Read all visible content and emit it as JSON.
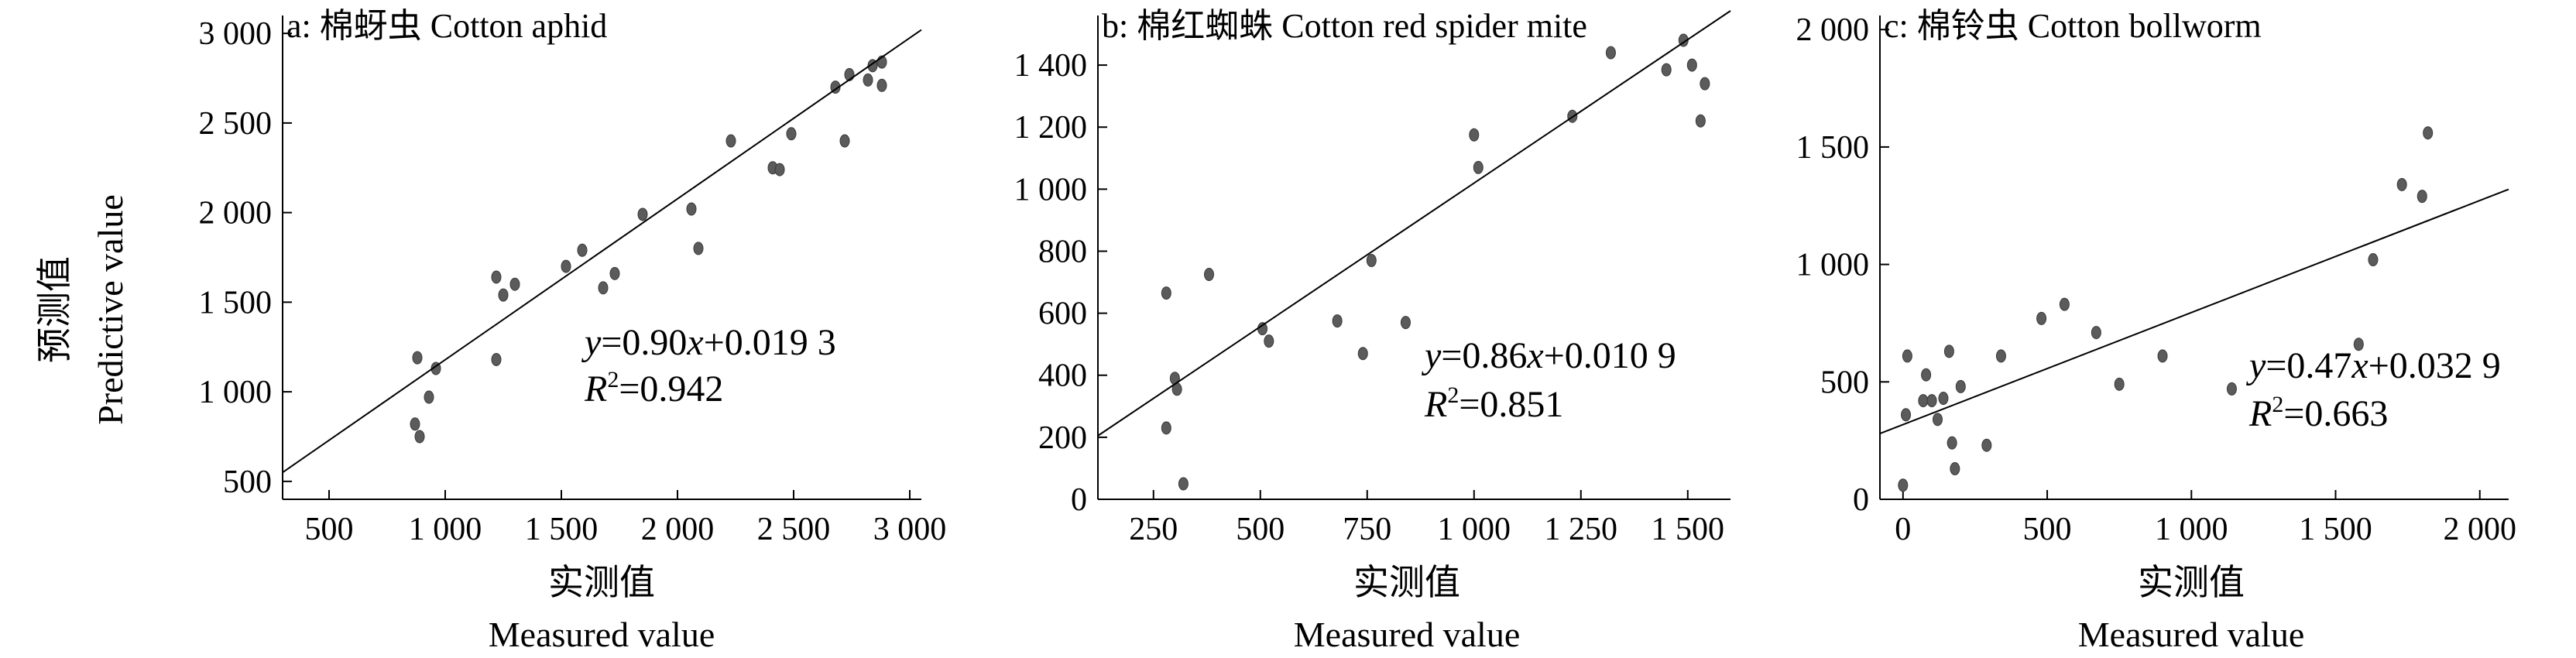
{
  "chart_data": [
    {
      "type": "scatter",
      "panel": "a",
      "title": "a: 棉蚜虫 Cotton aphid",
      "xlabel_cn": "实测值",
      "xlabel_en": "Measured value",
      "ylabel_cn": "预测值",
      "ylabel_en": "Predictive value",
      "xlim": [
        300,
        3050
      ],
      "ylim": [
        400,
        3100
      ],
      "xticks": [
        500,
        1000,
        1500,
        2000,
        2500,
        3000
      ],
      "xtick_labels": [
        "500",
        "1 000",
        "1 500",
        "2 000",
        "2 500",
        "3 000"
      ],
      "yticks": [
        500,
        1000,
        1500,
        2000,
        2500,
        3000
      ],
      "ytick_labels": [
        "500",
        "1 000",
        "1 500",
        "2 000",
        "2 500",
        "3 000"
      ],
      "equation": {
        "y": "y",
        "eq": "=0.90",
        "x": "x",
        "rest": "+0.019 3"
      },
      "r2": {
        "r": "R",
        "sup": "2",
        "rest": "=0.942"
      },
      "fit_line": {
        "x": [
          300,
          3050
        ],
        "y": [
          550,
          3020
        ]
      },
      "points": [
        {
          "x": 880,
          "y": 1190
        },
        {
          "x": 960,
          "y": 1130
        },
        {
          "x": 870,
          "y": 820
        },
        {
          "x": 890,
          "y": 750
        },
        {
          "x": 930,
          "y": 970
        },
        {
          "x": 1220,
          "y": 1640
        },
        {
          "x": 1250,
          "y": 1540
        },
        {
          "x": 1300,
          "y": 1600
        },
        {
          "x": 1220,
          "y": 1180
        },
        {
          "x": 1520,
          "y": 1700
        },
        {
          "x": 1590,
          "y": 1790
        },
        {
          "x": 1680,
          "y": 1580
        },
        {
          "x": 1730,
          "y": 1660
        },
        {
          "x": 1850,
          "y": 1990
        },
        {
          "x": 2060,
          "y": 2020
        },
        {
          "x": 2090,
          "y": 1800
        },
        {
          "x": 2230,
          "y": 2400
        },
        {
          "x": 2410,
          "y": 2250
        },
        {
          "x": 2440,
          "y": 2240
        },
        {
          "x": 2490,
          "y": 2440
        },
        {
          "x": 2680,
          "y": 2700
        },
        {
          "x": 2720,
          "y": 2400
        },
        {
          "x": 2740,
          "y": 2770
        },
        {
          "x": 2820,
          "y": 2740
        },
        {
          "x": 2840,
          "y": 2820
        },
        {
          "x": 2880,
          "y": 2840
        },
        {
          "x": 2880,
          "y": 2710
        }
      ]
    },
    {
      "type": "scatter",
      "panel": "b",
      "title": "b: 棉红蜘蛛 Cotton red spider mite",
      "xlabel_cn": "实测值",
      "xlabel_en": "Measured value",
      "xlim": [
        120,
        1600
      ],
      "ylim": [
        0,
        1560
      ],
      "xticks": [
        250,
        500,
        750,
        1000,
        1250,
        1500
      ],
      "xtick_labels": [
        "250",
        "500",
        "750",
        "1 000",
        "1 250",
        "1 500"
      ],
      "yticks": [
        0,
        200,
        400,
        600,
        800,
        1000,
        1200,
        1400
      ],
      "ytick_labels": [
        "0",
        "200",
        "400",
        "600",
        "800",
        "1 000",
        "1 200",
        "1 400"
      ],
      "equation": {
        "y": "y",
        "eq": "=0.86",
        "x": "x",
        "rest": "+0.010 9"
      },
      "r2": {
        "r": "R",
        "sup": "2",
        "rest": "=0.851"
      },
      "fit_line": {
        "x": [
          120,
          1600
        ],
        "y": [
          205,
          1575
        ]
      },
      "points": [
        {
          "x": 280,
          "y": 665
        },
        {
          "x": 280,
          "y": 230
        },
        {
          "x": 300,
          "y": 390
        },
        {
          "x": 305,
          "y": 355
        },
        {
          "x": 320,
          "y": 50
        },
        {
          "x": 380,
          "y": 725
        },
        {
          "x": 505,
          "y": 550
        },
        {
          "x": 520,
          "y": 510
        },
        {
          "x": 680,
          "y": 575
        },
        {
          "x": 740,
          "y": 470
        },
        {
          "x": 760,
          "y": 770
        },
        {
          "x": 840,
          "y": 570
        },
        {
          "x": 1000,
          "y": 1175
        },
        {
          "x": 1010,
          "y": 1070
        },
        {
          "x": 1230,
          "y": 1235
        },
        {
          "x": 1320,
          "y": 1440
        },
        {
          "x": 1450,
          "y": 1385
        },
        {
          "x": 1490,
          "y": 1480
        },
        {
          "x": 1510,
          "y": 1400
        },
        {
          "x": 1530,
          "y": 1220
        },
        {
          "x": 1540,
          "y": 1340
        }
      ]
    },
    {
      "type": "scatter",
      "panel": "c",
      "title": "c: 棉铃虫 Cotton bollworm",
      "xlabel_cn": "实测值",
      "xlabel_en": "Measured value",
      "xlim": [
        -80,
        2100
      ],
      "ylim": [
        0,
        2060
      ],
      "xticks": [
        0,
        500,
        1000,
        1500,
        2000
      ],
      "xtick_labels": [
        "0",
        "500",
        "1 000",
        "1 500",
        "2 000"
      ],
      "yticks": [
        0,
        500,
        1000,
        1500,
        2000
      ],
      "ytick_labels": [
        "0",
        "500",
        "1 000",
        "1 500",
        "2 000"
      ],
      "equation": {
        "y": "y",
        "eq": "=0.47",
        "x": "x",
        "rest": "+0.032 9"
      },
      "r2": {
        "r": "R",
        "sup": "2",
        "rest": "=0.663"
      },
      "fit_line": {
        "x": [
          -80,
          2100
        ],
        "y": [
          280,
          1320
        ]
      },
      "points": [
        {
          "x": 0,
          "y": 60
        },
        {
          "x": 10,
          "y": 360
        },
        {
          "x": 15,
          "y": 610
        },
        {
          "x": 70,
          "y": 420
        },
        {
          "x": 80,
          "y": 530
        },
        {
          "x": 100,
          "y": 420
        },
        {
          "x": 120,
          "y": 340
        },
        {
          "x": 140,
          "y": 430
        },
        {
          "x": 160,
          "y": 630
        },
        {
          "x": 170,
          "y": 240
        },
        {
          "x": 180,
          "y": 130
        },
        {
          "x": 200,
          "y": 480
        },
        {
          "x": 290,
          "y": 230
        },
        {
          "x": 340,
          "y": 610
        },
        {
          "x": 480,
          "y": 770
        },
        {
          "x": 560,
          "y": 830
        },
        {
          "x": 670,
          "y": 710
        },
        {
          "x": 750,
          "y": 490
        },
        {
          "x": 900,
          "y": 610
        },
        {
          "x": 1140,
          "y": 470
        },
        {
          "x": 1580,
          "y": 660
        },
        {
          "x": 1630,
          "y": 1020
        },
        {
          "x": 1730,
          "y": 1340
        },
        {
          "x": 1800,
          "y": 1290
        },
        {
          "x": 1820,
          "y": 1560
        }
      ]
    }
  ]
}
